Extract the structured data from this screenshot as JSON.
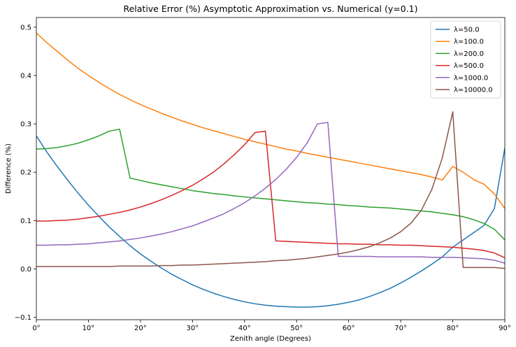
{
  "chart_data": {
    "type": "line",
    "title": "Relative Error (%) Asymptotic Approximation vs. Numerical (y=0.1)",
    "xlabel": "Zenith angle (Degrees)",
    "ylabel": "Difference (%)",
    "xlim": [
      0,
      90
    ],
    "ylim": [
      -0.105,
      0.52
    ],
    "xticks": [
      0,
      10,
      20,
      30,
      40,
      50,
      60,
      70,
      80,
      90
    ],
    "xtick_labels": [
      "0°",
      "10°",
      "20°",
      "30°",
      "40°",
      "50°",
      "60°",
      "70°",
      "80°",
      "90°"
    ],
    "yticks": [
      -0.1,
      0.0,
      0.1,
      0.2,
      0.3,
      0.4,
      0.5
    ],
    "ytick_labels": [
      "−0.1",
      "0.0",
      "0.1",
      "0.2",
      "0.3",
      "0.4",
      "0.5"
    ],
    "grid": false,
    "legend_position": "top-right",
    "x": [
      0,
      2,
      4,
      6,
      8,
      10,
      12,
      14,
      16,
      18,
      20,
      22,
      24,
      26,
      28,
      30,
      32,
      34,
      36,
      38,
      40,
      42,
      44,
      46,
      48,
      50,
      52,
      54,
      56,
      58,
      60,
      62,
      64,
      66,
      68,
      70,
      72,
      74,
      76,
      78,
      80,
      82,
      84,
      86,
      88,
      90
    ],
    "series": [
      {
        "name": "λ=50.0",
        "color": "#1f77b4",
        "values": [
          0.275,
          0.242,
          0.212,
          0.184,
          0.157,
          0.132,
          0.109,
          0.087,
          0.067,
          0.048,
          0.031,
          0.016,
          0.002,
          -0.011,
          -0.022,
          -0.033,
          -0.042,
          -0.05,
          -0.057,
          -0.063,
          -0.068,
          -0.072,
          -0.075,
          -0.077,
          -0.078,
          -0.079,
          -0.079,
          -0.078,
          -0.076,
          -0.073,
          -0.069,
          -0.064,
          -0.057,
          -0.049,
          -0.04,
          -0.029,
          -0.017,
          -0.004,
          0.01,
          0.025,
          0.045,
          0.06,
          0.075,
          0.09,
          0.125,
          0.25
        ]
      },
      {
        "name": "λ=100.0",
        "color": "#ff7f0e",
        "values": [
          0.488,
          0.468,
          0.45,
          0.432,
          0.415,
          0.4,
          0.386,
          0.373,
          0.361,
          0.35,
          0.34,
          0.331,
          0.322,
          0.314,
          0.306,
          0.299,
          0.292,
          0.286,
          0.28,
          0.274,
          0.268,
          0.263,
          0.258,
          0.253,
          0.248,
          0.244,
          0.239,
          0.235,
          0.231,
          0.227,
          0.223,
          0.219,
          0.215,
          0.211,
          0.207,
          0.203,
          0.199,
          0.195,
          0.19,
          0.184,
          0.212,
          0.2,
          0.185,
          0.175,
          0.155,
          0.125
        ]
      },
      {
        "name": "λ=200.0",
        "color": "#2ca02c",
        "values": [
          0.248,
          0.249,
          0.251,
          0.255,
          0.26,
          0.267,
          0.275,
          0.285,
          0.289,
          0.188,
          0.183,
          0.178,
          0.174,
          0.17,
          0.166,
          0.162,
          0.159,
          0.156,
          0.154,
          0.151,
          0.149,
          0.147,
          0.145,
          0.143,
          0.141,
          0.139,
          0.137,
          0.136,
          0.134,
          0.133,
          0.131,
          0.13,
          0.128,
          0.127,
          0.126,
          0.124,
          0.122,
          0.12,
          0.118,
          0.115,
          0.112,
          0.108,
          0.102,
          0.094,
          0.082,
          0.06
        ]
      },
      {
        "name": "λ=500.0",
        "color": "#d62728",
        "values": [
          0.099,
          0.099,
          0.1,
          0.101,
          0.103,
          0.106,
          0.109,
          0.113,
          0.117,
          0.122,
          0.128,
          0.135,
          0.143,
          0.152,
          0.162,
          0.173,
          0.186,
          0.2,
          0.217,
          0.236,
          0.257,
          0.282,
          0.285,
          0.058,
          0.057,
          0.056,
          0.055,
          0.054,
          0.053,
          0.052,
          0.052,
          0.051,
          0.051,
          0.05,
          0.05,
          0.049,
          0.049,
          0.048,
          0.047,
          0.046,
          0.045,
          0.043,
          0.041,
          0.038,
          0.033,
          0.023
        ]
      },
      {
        "name": "λ=1000.0",
        "color": "#9467bd",
        "values": [
          0.049,
          0.049,
          0.05,
          0.05,
          0.051,
          0.052,
          0.054,
          0.056,
          0.058,
          0.061,
          0.064,
          0.068,
          0.072,
          0.077,
          0.083,
          0.089,
          0.097,
          0.105,
          0.114,
          0.125,
          0.137,
          0.151,
          0.167,
          0.185,
          0.206,
          0.231,
          0.26,
          0.3,
          0.303,
          0.026,
          0.026,
          0.026,
          0.026,
          0.025,
          0.025,
          0.025,
          0.025,
          0.025,
          0.024,
          0.024,
          0.024,
          0.023,
          0.022,
          0.021,
          0.018,
          0.012
        ]
      },
      {
        "name": "λ=10000.0",
        "color": "#8c564b",
        "values": [
          0.005,
          0.005,
          0.005,
          0.005,
          0.005,
          0.005,
          0.005,
          0.005,
          0.006,
          0.006,
          0.006,
          0.006,
          0.007,
          0.007,
          0.008,
          0.008,
          0.009,
          0.01,
          0.011,
          0.012,
          0.013,
          0.014,
          0.015,
          0.017,
          0.018,
          0.02,
          0.022,
          0.025,
          0.028,
          0.031,
          0.035,
          0.04,
          0.046,
          0.054,
          0.064,
          0.077,
          0.095,
          0.122,
          0.165,
          0.23,
          0.325,
          0.003,
          0.003,
          0.003,
          0.003,
          0.001
        ]
      }
    ]
  }
}
